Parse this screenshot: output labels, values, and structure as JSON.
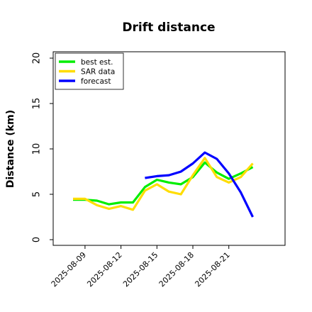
{
  "chart_data": {
    "type": "line",
    "title": "Drift distance",
    "xlabel": "",
    "ylabel": "Distance (km)",
    "ylim": [
      0,
      20
    ],
    "yticks": [
      0,
      5,
      10,
      15,
      20
    ],
    "xticks": [
      "2025-08-09",
      "2025-08-12",
      "2025-08-15",
      "2025-08-18",
      "2025-08-21"
    ],
    "x_start": "2025-08-08",
    "x_step_days": 1,
    "grid": false,
    "legend_position": "top-left",
    "series": [
      {
        "name": "best est.",
        "color": "#00ee00",
        "x_index": [
          0,
          1,
          2,
          3,
          4,
          5,
          6,
          7,
          8,
          9,
          10,
          11,
          12,
          13,
          14,
          15
        ],
        "values": [
          4.4,
          4.4,
          4.3,
          3.9,
          4.1,
          4.1,
          5.8,
          6.6,
          6.3,
          6.1,
          6.9,
          8.5,
          7.4,
          6.7,
          7.3,
          8.0
        ]
      },
      {
        "name": "SAR data",
        "color": "#ffdd00",
        "x_index": [
          0,
          1,
          2,
          3,
          4,
          5,
          6,
          7,
          8,
          9,
          10,
          11,
          12,
          13,
          14,
          15
        ],
        "values": [
          4.5,
          4.5,
          3.8,
          3.4,
          3.7,
          3.3,
          5.4,
          6.1,
          5.3,
          5.0,
          7.1,
          9.0,
          6.9,
          6.3,
          6.9,
          8.4
        ]
      },
      {
        "name": "forecast",
        "color": "#0000ff",
        "x_index": [
          6,
          7,
          8,
          9,
          10,
          11,
          12,
          13,
          14,
          15
        ],
        "values": [
          6.8,
          7.0,
          7.1,
          7.5,
          8.4,
          9.6,
          8.9,
          7.3,
          5.2,
          2.5
        ]
      }
    ]
  }
}
